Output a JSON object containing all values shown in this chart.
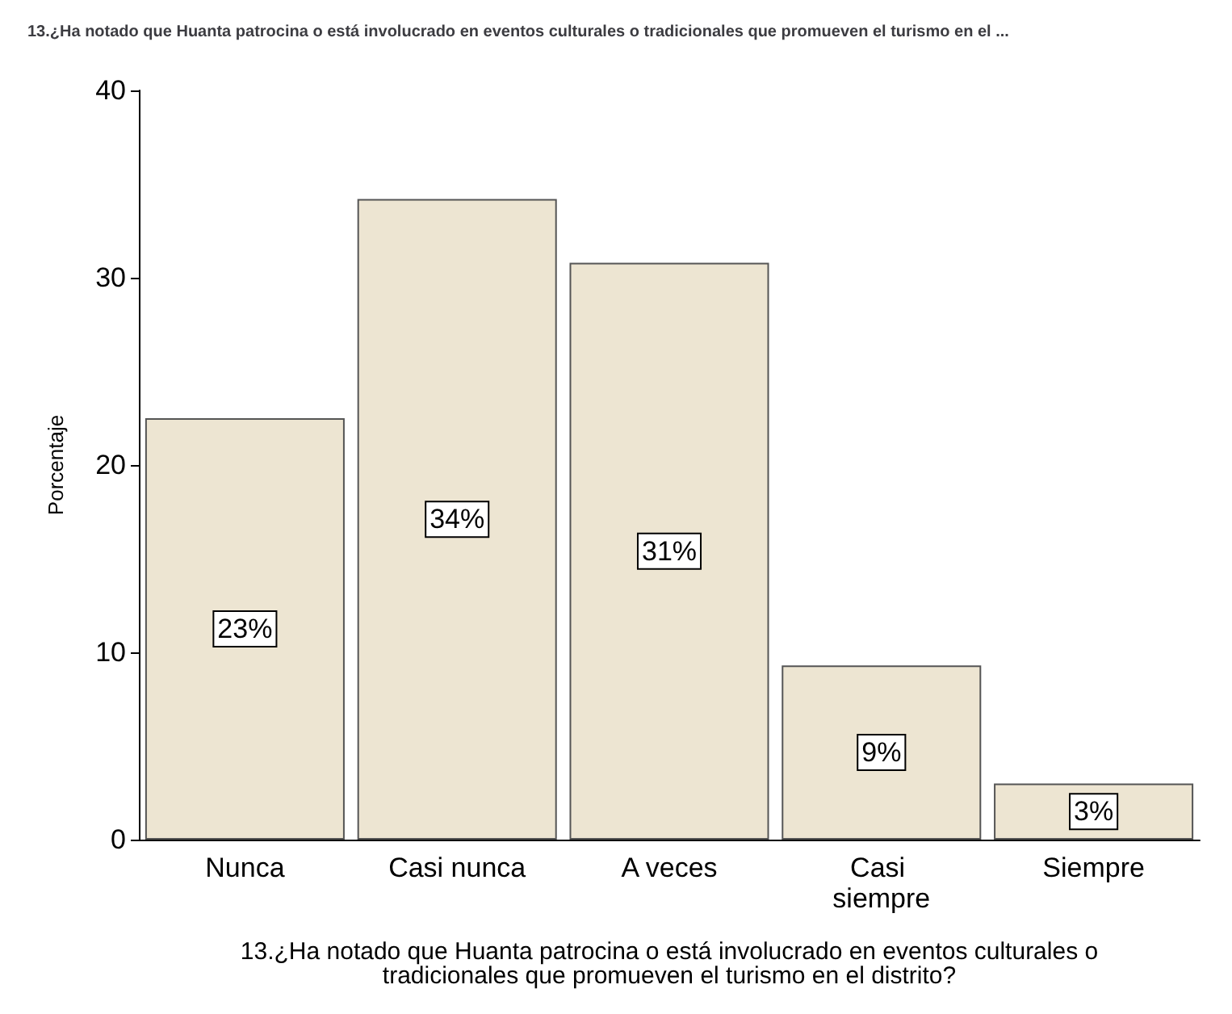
{
  "chart_data": {
    "type": "bar",
    "title": "13.¿Ha notado que Huanta patrocina o está involucrado en eventos culturales o tradicionales que promueven el turismo en el ...",
    "xlabel": "13.¿Ha notado que Huanta patrocina o está involucrado en eventos culturales o\ntradicionales que promueven el turismo en el distrito?",
    "ylabel": "Porcentaje",
    "categories": [
      "Nunca",
      "Casi nunca",
      "A veces",
      "Casi siempre",
      "Siempre"
    ],
    "values": [
      22.5,
      34.2,
      30.8,
      9.3,
      3.0
    ],
    "value_labels": [
      "23%",
      "34%",
      "31%",
      "9%",
      "3%"
    ],
    "color": "#ede5d2",
    "ylim": [
      0,
      40
    ],
    "yticks": [
      0,
      10,
      20,
      30,
      40
    ]
  }
}
